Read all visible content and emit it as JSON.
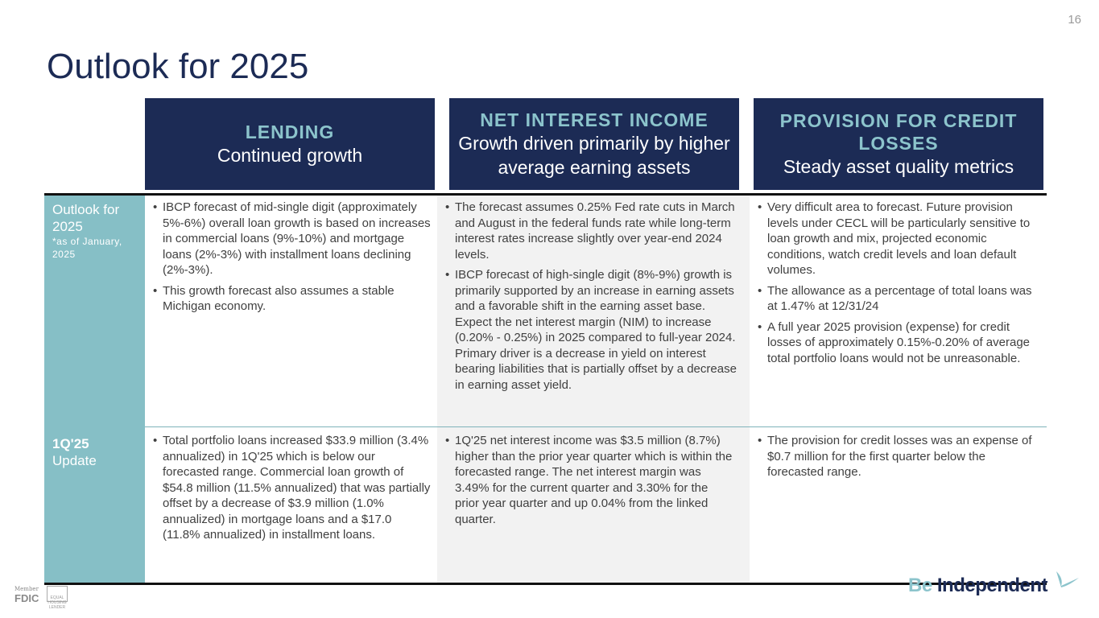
{
  "page_number": "16",
  "title": "Outlook for 2025",
  "headers": [
    {
      "title": "LENDING",
      "subtitle": "Continued growth"
    },
    {
      "title": "NET INTEREST INCOME",
      "subtitle": "Growth driven primarily by higher average earning assets"
    },
    {
      "title": "PROVISION FOR CREDIT LOSSES",
      "subtitle": "Steady asset quality metrics"
    }
  ],
  "rows": [
    {
      "label": "Outlook for 2025",
      "note": "*as of January, 2025",
      "cells": [
        [
          "IBCP forecast of mid-single digit (approximately 5%-6%) overall loan growth is based on increases in commercial loans (9%-10%) and mortgage loans (2%-3%) with installment loans declining (2%-3%).",
          "This growth forecast also assumes a stable Michigan economy."
        ],
        [
          "The forecast assumes 0.25% Fed rate cuts in March and August in the federal funds rate while long-term interest rates increase slightly over year-end 2024 levels.",
          "IBCP forecast of high-single digit (8%-9%) growth is primarily supported by an increase in earning assets and a favorable shift in the earning asset base. Expect the net interest margin (NIM) to increase (0.20% - 0.25%) in 2025 compared to full-year 2024. Primary driver is a decrease in yield on interest bearing liabilities that is partially offset by a decrease in earning asset yield."
        ],
        [
          "Very difficult area to forecast. Future provision levels under CECL will be particularly sensitive to loan growth and mix, projected economic conditions, watch credit levels and loan default volumes.",
          "The allowance as a percentage of total loans was at 1.47% at 12/31/24",
          "A full year 2025 provision (expense) for credit losses of approximately 0.15%-0.20% of average total portfolio loans would not be unreasonable."
        ]
      ]
    },
    {
      "label": "1Q'25",
      "label2": "Update",
      "cells": [
        [
          "Total portfolio loans increased $33.9 million (3.4% annualized) in 1Q'25 which is below our forecasted range. Commercial loan growth of $54.8 million (11.5% annualized) that was partially offset by a decrease of $3.9 million (1.0% annualized) in mortgage loans and a $17.0 (11.8% annualized) in installment loans."
        ],
        [
          "1Q'25 net interest income was $3.5 million (8.7%)  higher than the prior year quarter which is within the forecasted range. The net interest margin was 3.49% for the current quarter and 3.30% for the prior year quarter and up 0.04% from the linked quarter."
        ],
        [
          "The provision for credit losses was an expense of $0.7 million for the first quarter below the forecasted range."
        ]
      ]
    }
  ],
  "footer": {
    "fdic_member": "Member",
    "fdic": "FDIC",
    "ehl": "EQUAL HOUSING LENDER",
    "logo_be": "Be",
    "logo_rest": "Independent"
  }
}
